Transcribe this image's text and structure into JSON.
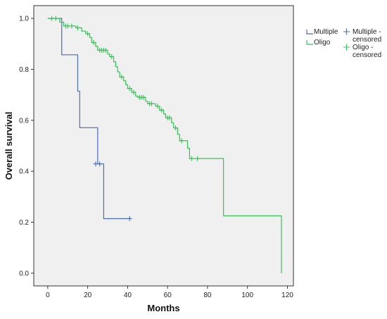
{
  "chart_data": {
    "type": "line",
    "step": true,
    "title": "",
    "xlabel": "Months",
    "ylabel": "Overall survival",
    "xlim": [
      -7,
      123
    ],
    "ylim": [
      -0.05,
      1.05
    ],
    "xticks": [
      0,
      20,
      40,
      60,
      80,
      100,
      120
    ],
    "yticks": [
      0.0,
      0.2,
      0.4,
      0.6,
      0.8,
      1.0
    ],
    "ytick_labels": [
      "0.0",
      "0.2",
      "0.4",
      "0.6",
      "0.8",
      "1.0"
    ],
    "plot_background": "#f0f0f0",
    "grid": false,
    "legend_position": "right",
    "series": [
      {
        "name": "Multiple",
        "color": "#4a6bb5",
        "steps": [
          [
            0,
            1.0
          ],
          [
            7,
            0.857
          ],
          [
            15,
            0.714
          ],
          [
            16,
            0.571
          ],
          [
            25,
            0.429
          ],
          [
            28,
            0.214
          ],
          [
            41,
            0.214
          ]
        ],
        "censored": [
          [
            24,
            0.429
          ],
          [
            26,
            0.429
          ],
          [
            41,
            0.214
          ]
        ],
        "censored_name": "Multiple - censored"
      },
      {
        "name": "Oligo",
        "color": "#33c455",
        "steps": [
          [
            0,
            1.0
          ],
          [
            6,
            0.985
          ],
          [
            8,
            0.97
          ],
          [
            14,
            0.963
          ],
          [
            17,
            0.95
          ],
          [
            19,
            0.94
          ],
          [
            21,
            0.925
          ],
          [
            22,
            0.905
          ],
          [
            24,
            0.89
          ],
          [
            25,
            0.875
          ],
          [
            30,
            0.86
          ],
          [
            31,
            0.85
          ],
          [
            33,
            0.83
          ],
          [
            34,
            0.81
          ],
          [
            35,
            0.79
          ],
          [
            36,
            0.77
          ],
          [
            38,
            0.755
          ],
          [
            39,
            0.74
          ],
          [
            40,
            0.725
          ],
          [
            42,
            0.71
          ],
          [
            44,
            0.695
          ],
          [
            45,
            0.69
          ],
          [
            49,
            0.675
          ],
          [
            50,
            0.665
          ],
          [
            54,
            0.655
          ],
          [
            56,
            0.64
          ],
          [
            58,
            0.625
          ],
          [
            59,
            0.61
          ],
          [
            62,
            0.59
          ],
          [
            63,
            0.57
          ],
          [
            65,
            0.545
          ],
          [
            66,
            0.52
          ],
          [
            70,
            0.49
          ],
          [
            71,
            0.45
          ],
          [
            88,
            0.225
          ],
          [
            117,
            0.0
          ]
        ],
        "censored": [
          [
            2,
            1.0
          ],
          [
            4,
            1.0
          ],
          [
            9,
            0.97
          ],
          [
            10,
            0.97
          ],
          [
            12,
            0.97
          ],
          [
            15,
            0.963
          ],
          [
            20,
            0.94
          ],
          [
            23,
            0.905
          ],
          [
            26,
            0.875
          ],
          [
            27,
            0.875
          ],
          [
            28,
            0.875
          ],
          [
            29,
            0.875
          ],
          [
            32,
            0.85
          ],
          [
            37,
            0.77
          ],
          [
            41,
            0.725
          ],
          [
            43,
            0.71
          ],
          [
            46,
            0.69
          ],
          [
            47,
            0.69
          ],
          [
            48,
            0.69
          ],
          [
            51,
            0.665
          ],
          [
            52,
            0.665
          ],
          [
            55,
            0.655
          ],
          [
            57,
            0.64
          ],
          [
            60,
            0.61
          ],
          [
            61,
            0.61
          ],
          [
            64,
            0.57
          ],
          [
            67,
            0.52
          ],
          [
            72,
            0.45
          ],
          [
            75,
            0.45
          ]
        ],
        "censored_name": "Oligo - censored"
      }
    ]
  },
  "legend": {
    "items": [
      {
        "label": "Multiple",
        "color": "#4a6bb5",
        "kind": "line"
      },
      {
        "label": "Oligo",
        "color": "#33c455",
        "kind": "line"
      },
      {
        "label": "Multiple - censored",
        "lines": [
          "Multiple -",
          "censored"
        ],
        "color": "#4a6bb5",
        "kind": "cross"
      },
      {
        "label": "Oligo - censored",
        "lines": [
          "Oligo -",
          "censored"
        ],
        "color": "#33c455",
        "kind": "cross"
      }
    ]
  }
}
